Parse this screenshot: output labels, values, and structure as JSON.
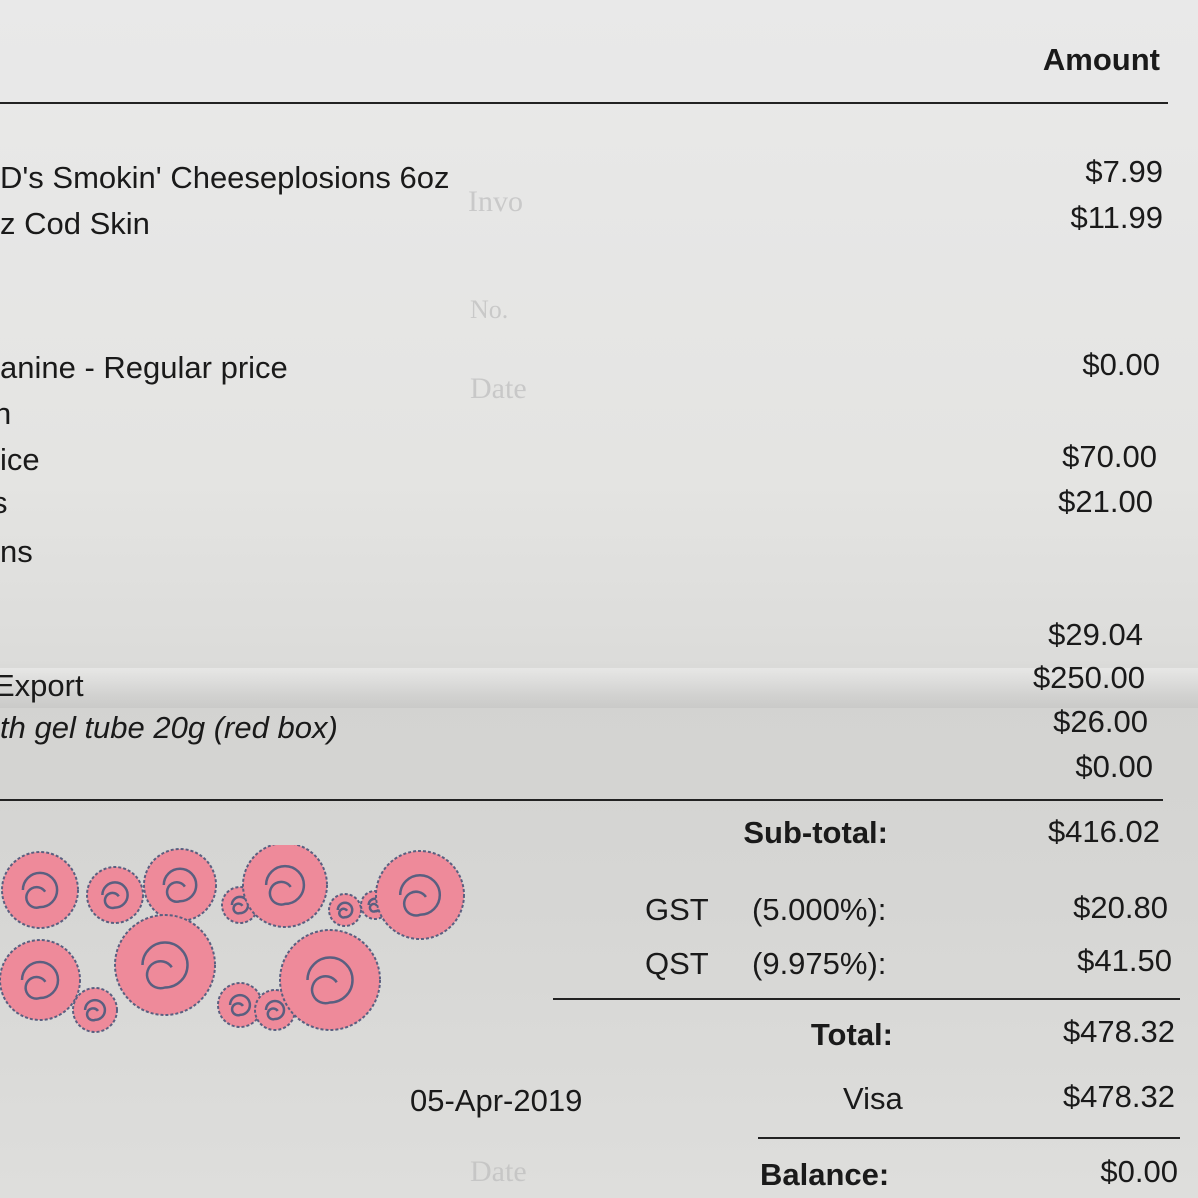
{
  "header": {
    "amount_label": "Amount"
  },
  "items": [
    {
      "description": "D's Smokin' Cheeseplosions 6oz",
      "amount": "$7.99"
    },
    {
      "description": "z  Cod Skin",
      "amount": "$11.99"
    },
    {
      "description": "anine - Regular price",
      "amount": "$0.00"
    },
    {
      "description": "n",
      "amount": ""
    },
    {
      "description": "ice",
      "amount": "$70.00"
    },
    {
      "description": "s",
      "amount": "$21.00"
    },
    {
      "description": "ns",
      "amount": ""
    },
    {
      "description": "",
      "amount": "$29.04"
    },
    {
      "description": "Export",
      "amount": "$250.00"
    },
    {
      "description": "th gel tube 20g (red box)",
      "amount": "$26.00"
    },
    {
      "description": "",
      "amount": "$0.00"
    }
  ],
  "totals": {
    "subtotal_label": "Sub-total:",
    "subtotal": "$416.02",
    "gst_label": "GST",
    "gst_rate": "(5.000%):",
    "gst": "$20.80",
    "qst_label": "QST",
    "qst_rate": "(9.975%):",
    "qst": "$41.50",
    "total_label": "Total:",
    "total": "$478.32",
    "payment_date": "05-Apr-2019",
    "payment_method": "Visa",
    "payment_amount": "$478.32",
    "balance_label": "Balance:",
    "balance": "$0.00"
  },
  "show_through": [
    "Invo",
    "No.",
    "Date",
    "Date"
  ],
  "colors": {
    "rose_fill": "#ee8a9a",
    "rose_outline": "#5a5f80",
    "paper": "#e6e6e4"
  }
}
